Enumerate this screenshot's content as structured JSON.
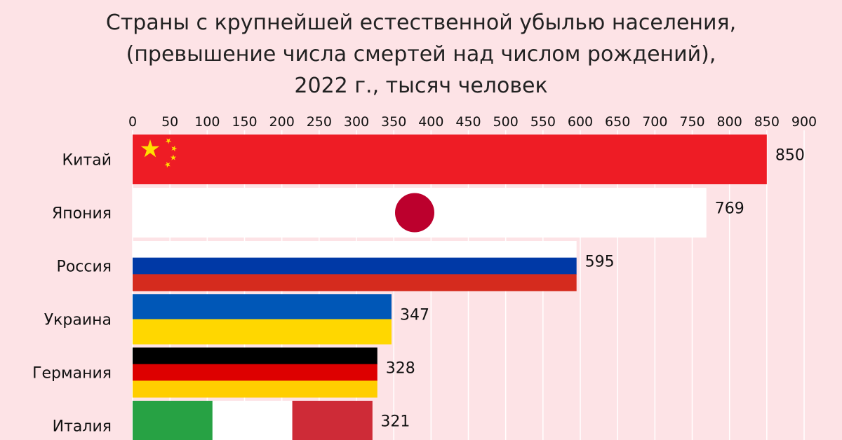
{
  "chart_data": {
    "type": "bar",
    "orientation": "horizontal",
    "title_lines": [
      "Страны с крупнейшей естественной убылью населения,",
      "(превышение числа смертей над числом рождений),",
      "2022 г., тысяч человек"
    ],
    "categories": [
      "Китай",
      "Япония",
      "Россия",
      "Украина",
      "Германия",
      "Италия"
    ],
    "values": [
      850,
      769,
      595,
      347,
      328,
      321
    ],
    "value_labels": [
      "850",
      "769",
      "595",
      "347",
      "328",
      "321"
    ],
    "xlim": [
      0,
      900
    ],
    "x_ticks": [
      0,
      50,
      100,
      150,
      200,
      250,
      300,
      350,
      400,
      450,
      500,
      550,
      600,
      650,
      700,
      750,
      800,
      850,
      900
    ],
    "x_tick_labels": [
      "0",
      "50",
      "100",
      "150",
      "200",
      "250",
      "300",
      "350",
      "400",
      "450",
      "500",
      "550",
      "600",
      "650",
      "700",
      "750",
      "800",
      "850",
      "900"
    ],
    "axis_position": "top",
    "grid": true,
    "bar_styles": [
      {
        "flag": "china",
        "colors": [
          "#ee1c25",
          "#ffde00"
        ]
      },
      {
        "flag": "japan",
        "colors": [
          "#ffffff",
          "#bc002d"
        ]
      },
      {
        "flag": "russia",
        "colors": [
          "#ffffff",
          "#0039a6",
          "#d52b1e"
        ]
      },
      {
        "flag": "ukraine",
        "colors": [
          "#0057b7",
          "#ffd700"
        ]
      },
      {
        "flag": "germany",
        "colors": [
          "#000000",
          "#dd0000",
          "#ffce00"
        ]
      },
      {
        "flag": "italy",
        "colors": [
          "#27a244",
          "#ffffff",
          "#ce2b37"
        ]
      }
    ]
  },
  "colors": {
    "background": "#fde3e6",
    "grid": "#ffffff"
  }
}
